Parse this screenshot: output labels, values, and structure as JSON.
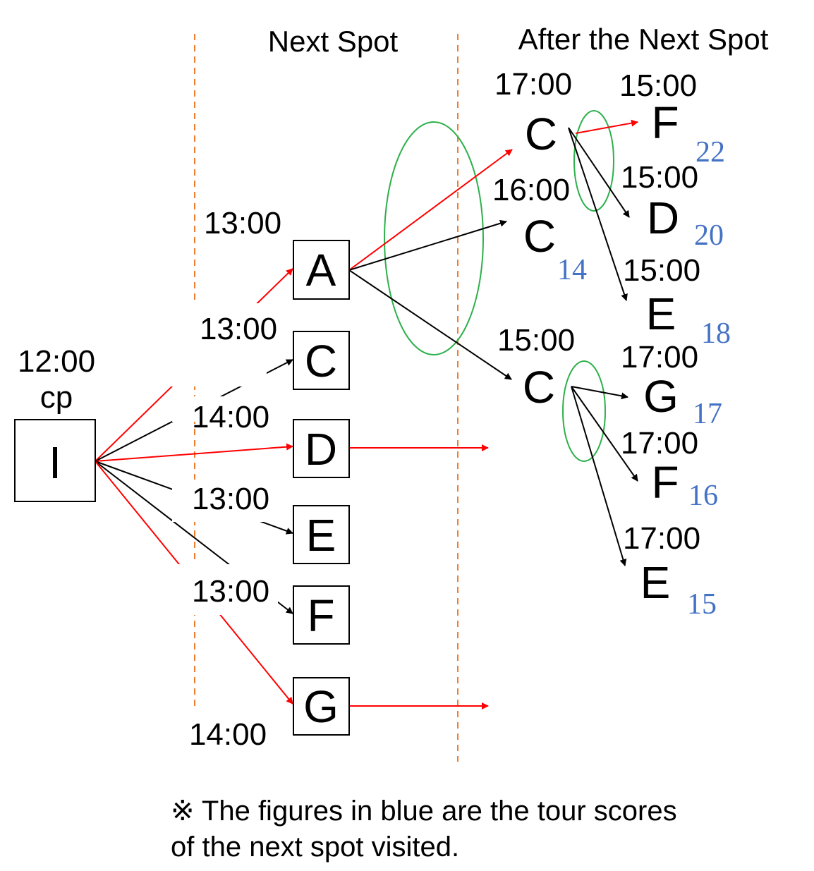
{
  "headers": {
    "next_spot": "Next Spot",
    "after_next_spot": "After the Next Spot"
  },
  "origin": {
    "time": "12:00",
    "sub": "cp",
    "label": "I"
  },
  "next_spots": [
    {
      "label": "A",
      "time": "13:00"
    },
    {
      "label": "C",
      "time": "13:00"
    },
    {
      "label": "D",
      "time": "14:00"
    },
    {
      "label": "E",
      "time": "13:00"
    },
    {
      "label": "F",
      "time": "13:00"
    },
    {
      "label": "G",
      "time": "14:00"
    }
  ],
  "after_nodes": [
    {
      "label": "C",
      "time": "17:00",
      "score": ""
    },
    {
      "label": "C",
      "time": "16:00",
      "score": "14"
    },
    {
      "label": "C",
      "time": "15:00",
      "score": ""
    },
    {
      "label": "F",
      "time": "15:00",
      "score": "22"
    },
    {
      "label": "D",
      "time": "15:00",
      "score": "20"
    },
    {
      "label": "E",
      "time": "15:00",
      "score": "18"
    },
    {
      "label": "G",
      "time": "17:00",
      "score": "17"
    },
    {
      "label": "F",
      "time": "17:00",
      "score": "16"
    },
    {
      "label": "E",
      "time": "17:00",
      "score": "15"
    }
  ],
  "note": {
    "line1": "※ The figures in blue are the tour scores",
    "line2": "of the next spot visited."
  },
  "colors": {
    "highlight_arrow": "#FF0000",
    "normal_arrow": "#000000",
    "score": "#4472C4",
    "ellipse": "#2DB04B",
    "divider": "#ED7D31"
  }
}
